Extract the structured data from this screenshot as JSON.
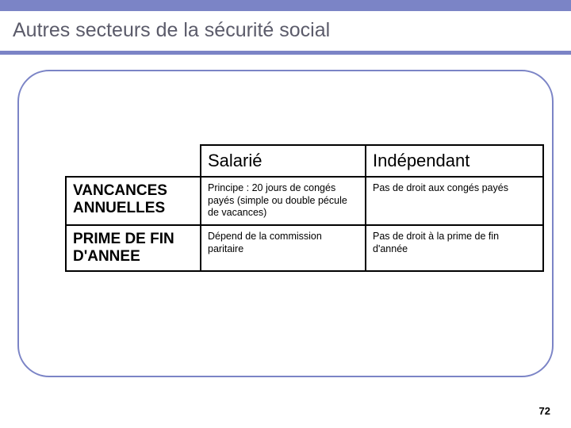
{
  "accent_color": "#7b84c6",
  "title": "Autres secteurs de la sécurité social",
  "page_number": "72",
  "table": {
    "columns": [
      "Salarié",
      "Indépendant"
    ],
    "rows": [
      {
        "header": "VANCANCES ANNUELLES",
        "cells": [
          "Principe : 20 jours de congés payés (simple ou double pécule de vacances)",
          "Pas de droit aux congés payés"
        ]
      },
      {
        "header": "PRIME DE FIN D'ANNEE",
        "cells": [
          "Dépend de la commission paritaire",
          "Pas de droit à la prime de fin d'année"
        ]
      }
    ]
  }
}
